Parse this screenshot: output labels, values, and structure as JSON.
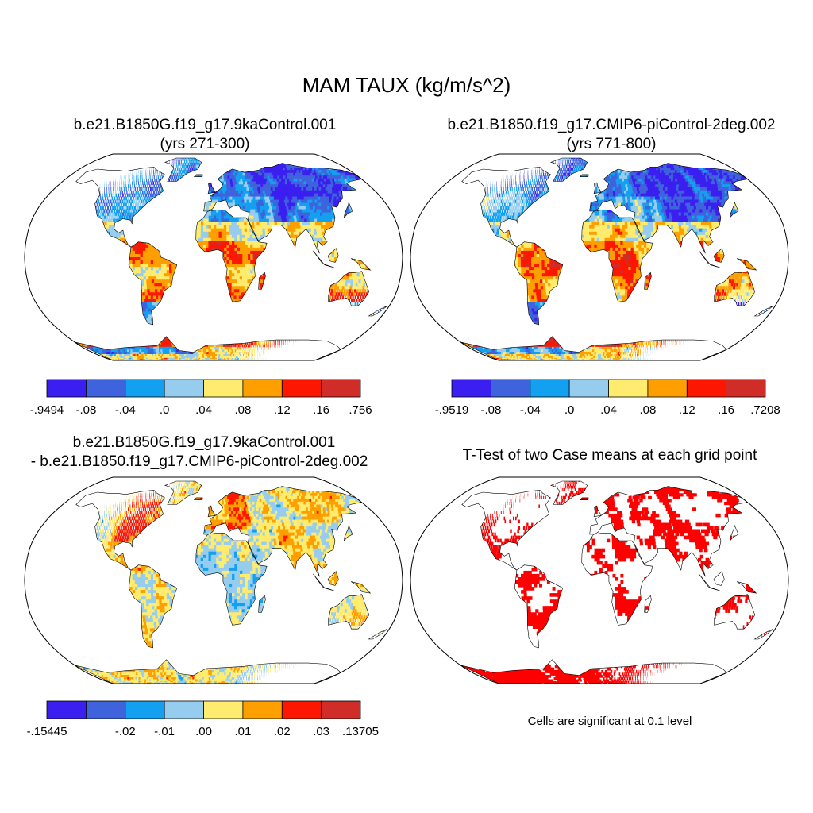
{
  "main_title": "MAM TAUX (kg/m/s^2)",
  "panels": {
    "top_left": {
      "title_line1": "b.e21.B1850G.f19_g17.9kaControl.001",
      "title_line2": "(yrs 271-300)",
      "colorbar": {
        "colors": [
          "#3b1ef0",
          "#3f63dc",
          "#14a0f0",
          "#96cdef",
          "#ffec6e",
          "#fe9f00",
          "#fe1700",
          "#d02c28"
        ],
        "labels": [
          "-.9494",
          "-.08",
          "-.04",
          ".0",
          ".04",
          ".08",
          ".12",
          ".16",
          ".756"
        ]
      }
    },
    "top_right": {
      "title_line1": "b.e21.B1850.f19_g17.CMIP6-piControl-2deg.002",
      "title_line2": "(yrs 771-800)",
      "colorbar": {
        "colors": [
          "#3b1ef0",
          "#3f63dc",
          "#14a0f0",
          "#96cdef",
          "#ffec6e",
          "#fe9f00",
          "#fe1700",
          "#d02c28"
        ],
        "labels": [
          "-.9519",
          "-.08",
          "-.04",
          ".0",
          ".04",
          ".08",
          ".12",
          ".16",
          ".7208"
        ]
      }
    },
    "bottom_left": {
      "title_line1": "b.e21.B1850G.f19_g17.9kaControl.001",
      "title_line2": "- b.e21.B1850.f19_g17.CMIP6-piControl-2deg.002",
      "colorbar": {
        "colors": [
          "#3b1ef0",
          "#3f63dc",
          "#14a0f0",
          "#96cdef",
          "#ffec6e",
          "#fe9f00",
          "#fe1700",
          "#d02c28"
        ],
        "labels": [
          "-.15445",
          "",
          "-.02",
          "-.01",
          ".00",
          ".01",
          ".02",
          ".03",
          ".13705"
        ]
      }
    },
    "bottom_right": {
      "title_line1": "T-Test of two Case means at each grid point",
      "note": "Cells are significant at 0.1 level",
      "significance_color": "#fe0000"
    }
  },
  "projection": "Robinson"
}
